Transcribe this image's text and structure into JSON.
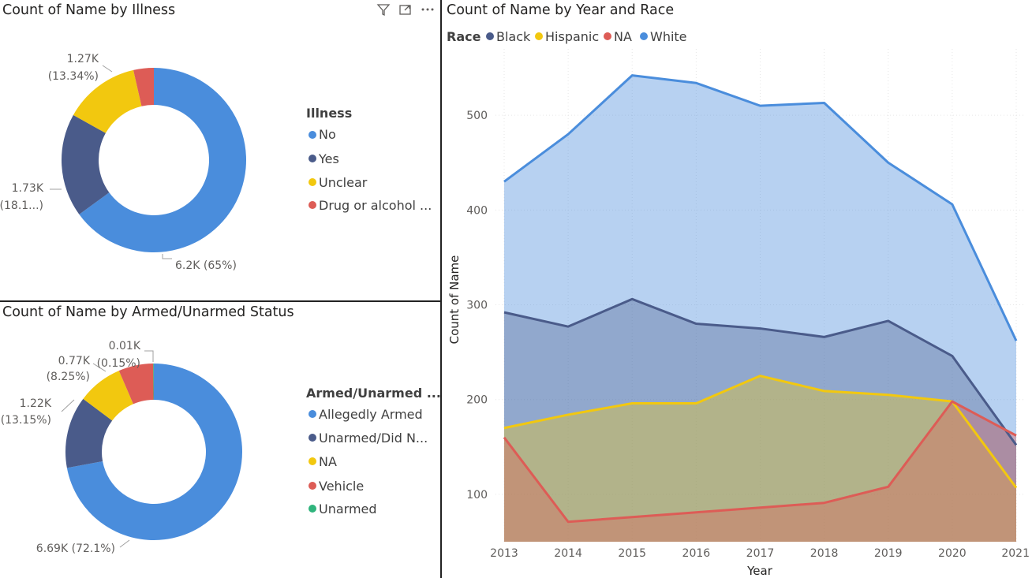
{
  "illness": {
    "title": "Count of Name by Illness",
    "legend_title": "Illness",
    "legend": [
      {
        "label": "No",
        "color": "#4a8ddc"
      },
      {
        "label": "Yes",
        "color": "#4a5b8a"
      },
      {
        "label": "Unclear",
        "color": "#f2c80f"
      },
      {
        "label": "Drug or alcohol ...",
        "color": "#dd5c56"
      }
    ],
    "labels": {
      "unclear_a": "1.27K",
      "unclear_b": "(13.34%)",
      "yes_a": "1.73K",
      "yes_b": "(18.1...)",
      "no": "6.2K (65%)"
    },
    "chart_data": {
      "type": "pie",
      "categories": [
        "No",
        "Yes",
        "Unclear",
        "Drug or alcohol ..."
      ],
      "values": [
        6200,
        1730,
        1270,
        340
      ],
      "percent": [
        65,
        18.1,
        13.34,
        3.56
      ]
    }
  },
  "armed": {
    "title": "Count of Name by Armed/Unarmed Status",
    "legend_title": "Armed/Unarmed ...",
    "legend": [
      {
        "label": "Allegedly Armed",
        "color": "#4a8ddc"
      },
      {
        "label": "Unarmed/Did N...",
        "color": "#4a5b8a"
      },
      {
        "label": "NA",
        "color": "#f2c80f"
      },
      {
        "label": "Vehicle",
        "color": "#dd5c56"
      },
      {
        "label": "Unarmed",
        "color": "#2fb47c"
      }
    ],
    "labels": {
      "unarmed_a": "0.01K",
      "unarmed_b": "(0.15%)",
      "na_a": "0.77K",
      "na_b": "(8.25%)",
      "unarmed_did_a": "1.22K",
      "unarmed_did_b": "(13.15%)",
      "armed": "6.69K (72.1%)"
    },
    "chart_data": {
      "type": "pie",
      "categories": [
        "Allegedly Armed",
        "Unarmed/Did N...",
        "NA",
        "Vehicle",
        "Unarmed"
      ],
      "values": [
        6690,
        1220,
        770,
        590,
        10
      ],
      "percent": [
        72.1,
        13.15,
        8.25,
        6.35,
        0.15
      ]
    }
  },
  "area": {
    "title": "Count of Name by Year and Race",
    "legend_title": "Race",
    "legend": [
      {
        "label": "Black",
        "color": "#4a5b8a"
      },
      {
        "label": "Hispanic",
        "color": "#f2c80f"
      },
      {
        "label": "NA",
        "color": "#dd5c56"
      },
      {
        "label": "White",
        "color": "#4a8ddc"
      }
    ],
    "chart_data": {
      "type": "area",
      "x": [
        2013,
        2014,
        2015,
        2016,
        2017,
        2018,
        2019,
        2020,
        2021
      ],
      "series": [
        {
          "name": "White",
          "color": "#4a8ddc",
          "values": [
            430,
            480,
            542,
            534,
            510,
            513,
            450,
            406,
            262
          ]
        },
        {
          "name": "Black",
          "color": "#4a5b8a",
          "values": [
            292,
            277,
            306,
            280,
            275,
            266,
            283,
            246,
            152
          ]
        },
        {
          "name": "Hispanic",
          "color": "#f2c80f",
          "values": [
            170,
            184,
            196,
            196,
            225,
            209,
            205,
            198,
            107
          ]
        },
        {
          "name": "NA",
          "color": "#dd5c56",
          "values": [
            160,
            71,
            76,
            81,
            86,
            91,
            108,
            198,
            162
          ]
        }
      ],
      "xlabel": "Year",
      "ylabel": "Count of Name",
      "ylim": [
        50,
        570
      ],
      "yticks": [
        100,
        200,
        300,
        400,
        500
      ],
      "grid": true,
      "legend_position": "top-left"
    }
  },
  "toolbar": {
    "icons": [
      "filter-icon",
      "focus-mode-icon",
      "more-options-icon"
    ]
  }
}
